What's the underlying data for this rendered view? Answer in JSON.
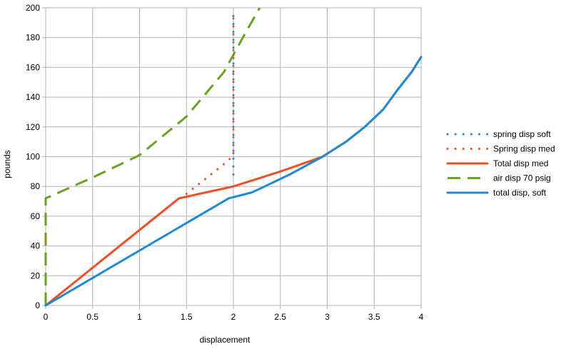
{
  "chart_data": {
    "type": "scatter",
    "title": "",
    "xlabel": "displacement",
    "ylabel": "pounds",
    "xlim": [
      0,
      4
    ],
    "ylim": [
      0,
      200
    ],
    "x_ticks": [
      "0",
      "0.5",
      "1",
      "1.5",
      "2",
      "2.5",
      "3",
      "3.5",
      "4"
    ],
    "y_ticks": [
      "0",
      "20",
      "40",
      "60",
      "80",
      "100",
      "120",
      "140",
      "160",
      "180",
      "200"
    ],
    "grid": true,
    "legend_position": "right",
    "series": [
      {
        "name": "spring disp soft",
        "color": "#1f8ad4",
        "style": "dotted",
        "points": [
          [
            2,
            88
          ],
          [
            2,
            100
          ],
          [
            2,
            120
          ],
          [
            2,
            140
          ],
          [
            2,
            160
          ],
          [
            2,
            180
          ],
          [
            2,
            197
          ]
        ]
      },
      {
        "name": "Spring disp med",
        "color": "#f04e23",
        "style": "dotted",
        "points": [
          [
            1.5,
            75
          ],
          [
            1.6,
            80
          ],
          [
            1.7,
            85
          ],
          [
            1.8,
            90
          ],
          [
            1.9,
            95
          ],
          [
            1.95,
            98
          ],
          [
            2,
            100
          ],
          [
            2,
            120
          ],
          [
            2,
            140
          ],
          [
            2,
            160
          ],
          [
            2,
            180
          ],
          [
            2,
            197
          ]
        ]
      },
      {
        "name": "Total disp med",
        "color": "#f04e23",
        "style": "solid",
        "points": [
          [
            0,
            0
          ],
          [
            1.42,
            72
          ],
          [
            2,
            80
          ],
          [
            2.5,
            90
          ],
          [
            2.95,
            100
          ],
          [
            3.2,
            110
          ],
          [
            3.4,
            120
          ],
          [
            3.6,
            132
          ],
          [
            3.75,
            145
          ],
          [
            3.9,
            157
          ],
          [
            4,
            167
          ]
        ]
      },
      {
        "name": "air disp 70 psig",
        "color": "#6aa121",
        "style": "dashed",
        "points": [
          [
            0,
            0
          ],
          [
            0,
            10
          ],
          [
            0,
            20
          ],
          [
            0,
            30
          ],
          [
            0,
            40
          ],
          [
            0,
            50
          ],
          [
            0,
            60
          ],
          [
            0,
            64
          ],
          [
            0,
            72
          ],
          [
            0.5,
            86
          ],
          [
            1,
            101
          ],
          [
            1.5,
            127
          ],
          [
            1.9,
            157
          ],
          [
            2.1,
            180
          ],
          [
            2.28,
            200
          ]
        ]
      },
      {
        "name": "total disp, soft",
        "color": "#1f8ad4",
        "style": "solid",
        "points": [
          [
            0,
            0
          ],
          [
            1.95,
            72
          ],
          [
            2.2,
            76
          ],
          [
            2.6,
            88
          ],
          [
            2.95,
            100
          ],
          [
            3.2,
            110
          ],
          [
            3.4,
            120
          ],
          [
            3.6,
            132
          ],
          [
            3.75,
            145
          ],
          [
            3.9,
            157
          ],
          [
            4,
            167
          ]
        ]
      }
    ]
  }
}
